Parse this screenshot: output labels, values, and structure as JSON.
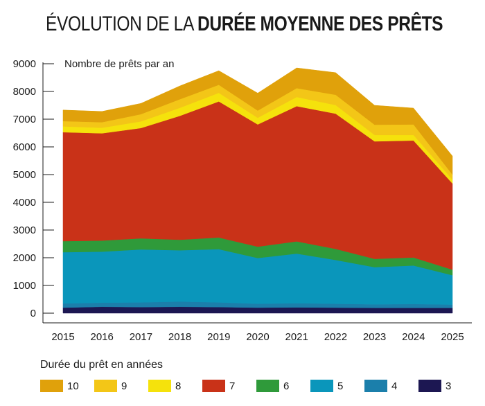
{
  "title": {
    "normal": "ÉVOLUTION DE LA",
    "bold": "DURÉE MOYENNE DES PRÊTS"
  },
  "unit_label": "Nombre de prêts par an",
  "legend_title": "Durée du prêt en années",
  "chart_data": {
    "type": "area",
    "stacked": true,
    "x": [
      "2015",
      "2016",
      "2017",
      "2018",
      "2019",
      "2020",
      "2021",
      "2022",
      "2023",
      "2024",
      "2025"
    ],
    "ylim": [
      0,
      9000
    ],
    "yticks": [
      0,
      1000,
      2000,
      3000,
      4000,
      5000,
      6000,
      7000,
      8000,
      9000
    ],
    "grid": false,
    "legend_position": "bottom",
    "series": [
      {
        "name": "3",
        "color": "#1c1752",
        "values": [
          200,
          230,
          220,
          230,
          220,
          200,
          210,
          200,
          190,
          190,
          190
        ]
      },
      {
        "name": "4",
        "color": "#1b7fab",
        "values": [
          150,
          150,
          170,
          190,
          170,
          140,
          150,
          140,
          130,
          140,
          120
        ]
      },
      {
        "name": "5",
        "color": "#0a96bb",
        "values": [
          1850,
          1840,
          1910,
          1850,
          1920,
          1650,
          1790,
          1580,
          1340,
          1390,
          1060
        ]
      },
      {
        "name": "6",
        "color": "#2f9a3a",
        "values": [
          400,
          400,
          400,
          380,
          420,
          410,
          440,
          400,
          300,
          290,
          200
        ]
      },
      {
        "name": "7",
        "color": "#c93218",
        "values": [
          3930,
          3870,
          3980,
          4470,
          4910,
          4410,
          4880,
          4880,
          4240,
          4220,
          3110
        ]
      },
      {
        "name": "8",
        "color": "#f5e20c",
        "values": [
          210,
          200,
          240,
          290,
          310,
          240,
          330,
          310,
          230,
          200,
          140
        ]
      },
      {
        "name": "9",
        "color": "#f3c617",
        "values": [
          190,
          200,
          260,
          310,
          290,
          260,
          320,
          370,
          370,
          380,
          180
        ]
      },
      {
        "name": "10",
        "color": "#e0a10b",
        "values": [
          400,
          390,
          390,
          480,
          510,
          630,
          730,
          800,
          700,
          590,
          670
        ]
      }
    ]
  },
  "legend_items": [
    {
      "label": "10",
      "color": "#e0a10b"
    },
    {
      "label": "9",
      "color": "#f3c617"
    },
    {
      "label": "8",
      "color": "#f5e20c"
    },
    {
      "label": "7",
      "color": "#c93218"
    },
    {
      "label": "6",
      "color": "#2f9a3a"
    },
    {
      "label": "5",
      "color": "#0a96bb"
    },
    {
      "label": "4",
      "color": "#1b7fab"
    },
    {
      "label": "3",
      "color": "#1c1752"
    }
  ]
}
